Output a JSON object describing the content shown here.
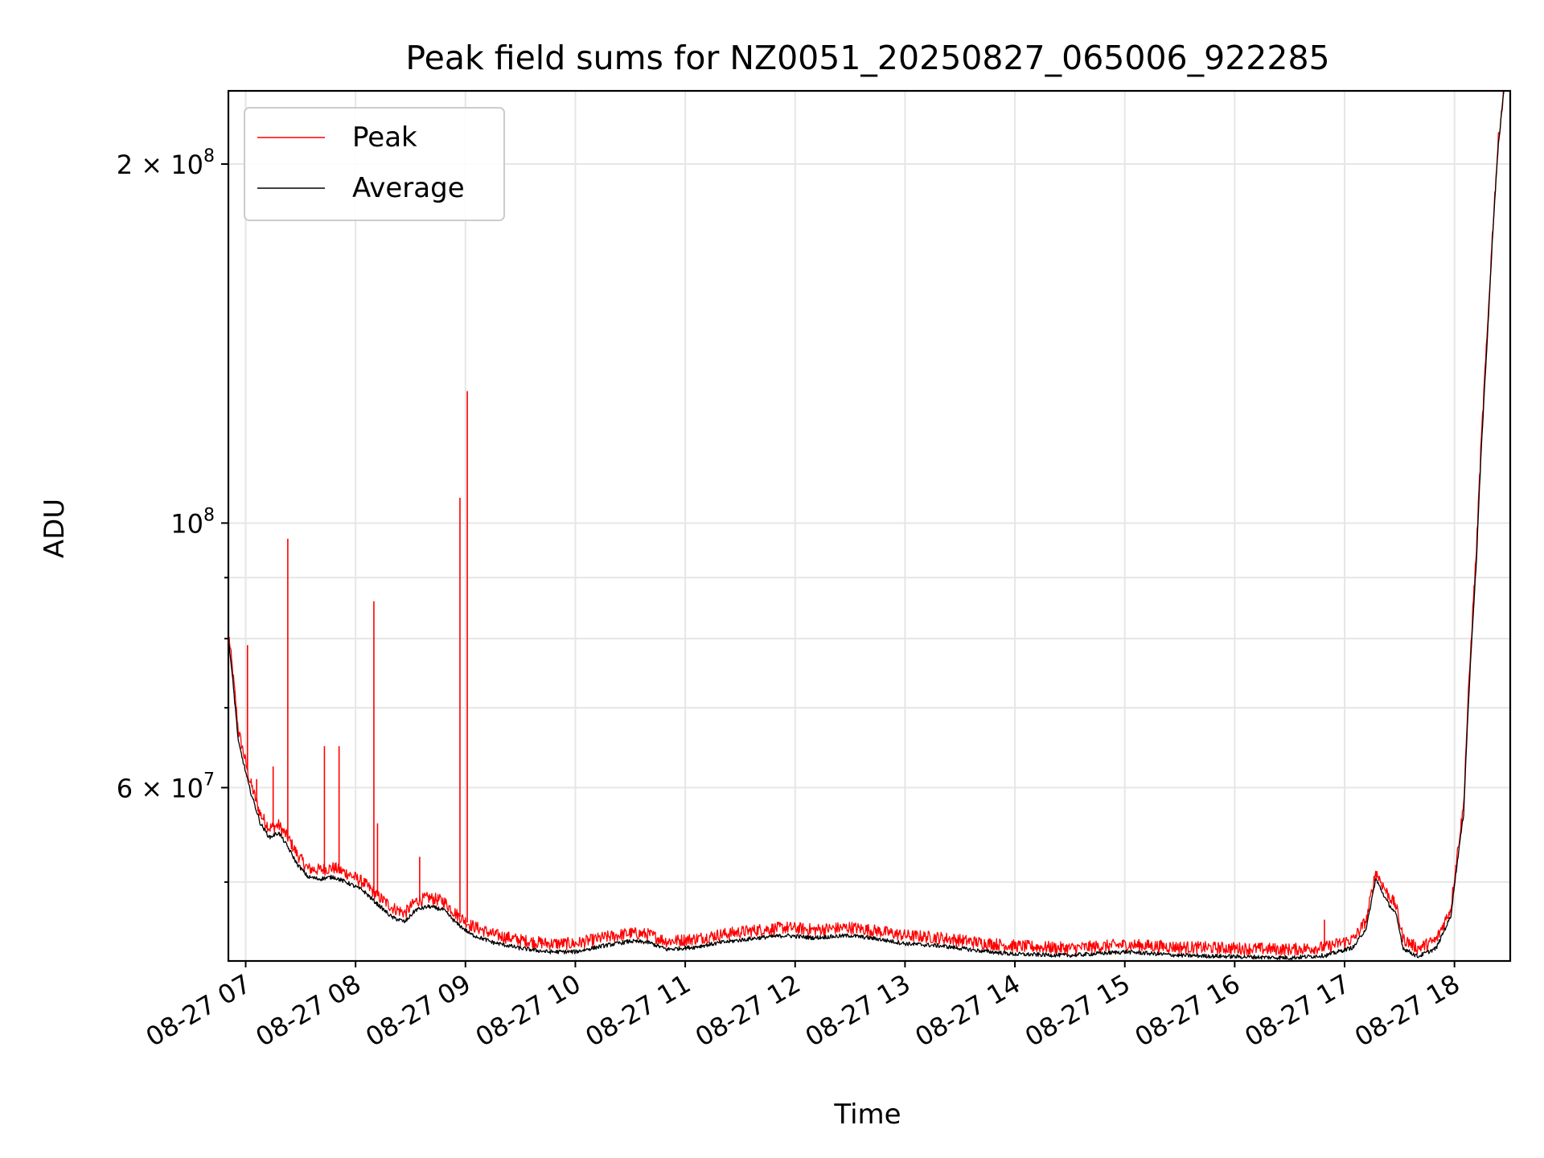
{
  "chart_data": {
    "type": "line",
    "title": "Peak field sums for NZ0051_20250827_065006_922285",
    "xlabel": "Time",
    "ylabel": "ADU",
    "y_scale": "log",
    "ylim": [
      43000000,
      230000000
    ],
    "xlim": [
      "2025-08-27 06:51",
      "2025-08-27 18:30"
    ],
    "grid": true,
    "legend_position": "top-left",
    "x_ticks": [
      {
        "time": "2025-08-27 07:00",
        "label": "08-27 07"
      },
      {
        "time": "2025-08-27 08:00",
        "label": "08-27 08"
      },
      {
        "time": "2025-08-27 09:00",
        "label": "08-27 09"
      },
      {
        "time": "2025-08-27 10:00",
        "label": "08-27 10"
      },
      {
        "time": "2025-08-27 11:00",
        "label": "08-27 11"
      },
      {
        "time": "2025-08-27 12:00",
        "label": "08-27 12"
      },
      {
        "time": "2025-08-27 13:00",
        "label": "08-27 13"
      },
      {
        "time": "2025-08-27 14:00",
        "label": "08-27 14"
      },
      {
        "time": "2025-08-27 15:00",
        "label": "08-27 15"
      },
      {
        "time": "2025-08-27 16:00",
        "label": "08-27 16"
      },
      {
        "time": "2025-08-27 17:00",
        "label": "08-27 17"
      },
      {
        "time": "2025-08-27 18:00",
        "label": "08-27 18"
      }
    ],
    "y_major_ticks": [
      {
        "value": 60000000,
        "base": "6 × 10",
        "exp": "7"
      },
      {
        "value": 100000000,
        "base": "10",
        "exp": "8"
      },
      {
        "value": 200000000,
        "base": "2 × 10",
        "exp": "8"
      }
    ],
    "y_minor_ticks": [
      50000000,
      70000000,
      80000000,
      90000000
    ],
    "series": [
      {
        "name": "Peak",
        "color": "#ff0000",
        "points": [
          [
            "2025-08-27 06:51",
            80000000
          ],
          [
            "2025-08-27 06:56",
            67000000
          ],
          [
            "2025-08-27 07:02",
            61000000
          ],
          [
            "2025-08-27 07:08",
            57000000
          ],
          [
            "2025-08-27 07:13",
            55500000
          ],
          [
            "2025-08-27 07:18",
            55800000
          ],
          [
            "2025-08-27 07:23",
            54500000
          ],
          [
            "2025-08-27 07:28",
            52800000
          ],
          [
            "2025-08-27 07:34",
            51300000
          ],
          [
            "2025-08-27 07:40",
            51200000
          ],
          [
            "2025-08-27 07:48",
            51400000
          ],
          [
            "2025-08-27 07:56",
            50800000
          ],
          [
            "2025-08-27 08:04",
            50000000
          ],
          [
            "2025-08-27 08:12",
            48700000
          ],
          [
            "2025-08-27 08:20",
            47600000
          ],
          [
            "2025-08-27 08:27",
            47100000
          ],
          [
            "2025-08-27 08:33",
            48200000
          ],
          [
            "2025-08-27 08:40",
            48500000
          ],
          [
            "2025-08-27 08:48",
            48200000
          ],
          [
            "2025-08-27 08:55",
            47000000
          ],
          [
            "2025-08-27 09:03",
            46000000
          ],
          [
            "2025-08-27 09:15",
            45200000
          ],
          [
            "2025-08-27 09:30",
            44700000
          ],
          [
            "2025-08-27 09:45",
            44400000
          ],
          [
            "2025-08-27 10:00",
            44400000
          ],
          [
            "2025-08-27 10:15",
            44900000
          ],
          [
            "2025-08-27 10:30",
            45300000
          ],
          [
            "2025-08-27 10:40",
            45200000
          ],
          [
            "2025-08-27 10:50",
            44600000
          ],
          [
            "2025-08-27 11:05",
            44800000
          ],
          [
            "2025-08-27 11:20",
            45200000
          ],
          [
            "2025-08-27 11:40",
            45600000
          ],
          [
            "2025-08-27 11:55",
            45800000
          ],
          [
            "2025-08-27 12:10",
            45600000
          ],
          [
            "2025-08-27 12:30",
            45800000
          ],
          [
            "2025-08-27 12:45",
            45500000
          ],
          [
            "2025-08-27 13:00",
            45100000
          ],
          [
            "2025-08-27 13:20",
            44900000
          ],
          [
            "2025-08-27 13:40",
            44500000
          ],
          [
            "2025-08-27 14:00",
            44200000
          ],
          [
            "2025-08-27 14:30",
            44000000
          ],
          [
            "2025-08-27 15:00",
            44300000
          ],
          [
            "2025-08-27 15:30",
            44100000
          ],
          [
            "2025-08-27 16:00",
            44000000
          ],
          [
            "2025-08-27 16:30",
            43900000
          ],
          [
            "2025-08-27 16:50",
            44100000
          ],
          [
            "2025-08-27 17:05",
            44800000
          ],
          [
            "2025-08-27 17:12",
            46500000
          ],
          [
            "2025-08-27 17:17",
            51000000
          ],
          [
            "2025-08-27 17:23",
            49000000
          ],
          [
            "2025-08-27 17:28",
            47800000
          ],
          [
            "2025-08-27 17:32",
            44800000
          ],
          [
            "2025-08-27 17:40",
            44000000
          ],
          [
            "2025-08-27 17:50",
            44700000
          ],
          [
            "2025-08-27 17:58",
            47500000
          ],
          [
            "2025-08-27 18:05",
            58000000
          ],
          [
            "2025-08-27 18:12",
            95000000
          ],
          [
            "2025-08-27 18:18",
            145000000
          ],
          [
            "2025-08-27 18:24",
            210000000
          ],
          [
            "2025-08-27 18:27",
            230000000
          ]
        ],
        "spikes": [
          [
            "2025-08-27 07:01",
            79000000
          ],
          [
            "2025-08-27 07:06",
            61000000
          ],
          [
            "2025-08-27 07:15",
            62500000
          ],
          [
            "2025-08-27 07:23",
            97000000
          ],
          [
            "2025-08-27 07:43",
            65000000
          ],
          [
            "2025-08-27 07:51",
            65000000
          ],
          [
            "2025-08-27 08:10",
            86000000
          ],
          [
            "2025-08-27 08:12",
            56000000
          ],
          [
            "2025-08-27 08:35",
            52500000
          ],
          [
            "2025-08-27 08:57",
            105000000
          ],
          [
            "2025-08-27 09:01",
            129000000
          ],
          [
            "2025-08-27 16:49",
            46500000
          ]
        ]
      },
      {
        "name": "Average",
        "color": "#000000",
        "points": [
          [
            "2025-08-27 06:51",
            79000000
          ],
          [
            "2025-08-27 06:56",
            65500000
          ],
          [
            "2025-08-27 07:02",
            60000000
          ],
          [
            "2025-08-27 07:08",
            56000000
          ],
          [
            "2025-08-27 07:13",
            54500000
          ],
          [
            "2025-08-27 07:18",
            55000000
          ],
          [
            "2025-08-27 07:23",
            53500000
          ],
          [
            "2025-08-27 07:28",
            51800000
          ],
          [
            "2025-08-27 07:34",
            50500000
          ],
          [
            "2025-08-27 07:40",
            50300000
          ],
          [
            "2025-08-27 07:48",
            50500000
          ],
          [
            "2025-08-27 07:56",
            49900000
          ],
          [
            "2025-08-27 08:04",
            49200000
          ],
          [
            "2025-08-27 08:12",
            47900000
          ],
          [
            "2025-08-27 08:20",
            46700000
          ],
          [
            "2025-08-27 08:27",
            46300000
          ],
          [
            "2025-08-27 08:33",
            47400000
          ],
          [
            "2025-08-27 08:40",
            47700000
          ],
          [
            "2025-08-27 08:48",
            47400000
          ],
          [
            "2025-08-27 08:55",
            46200000
          ],
          [
            "2025-08-27 09:03",
            45200000
          ],
          [
            "2025-08-27 09:15",
            44500000
          ],
          [
            "2025-08-27 09:30",
            44000000
          ],
          [
            "2025-08-27 09:45",
            43700000
          ],
          [
            "2025-08-27 10:00",
            43700000
          ],
          [
            "2025-08-27 10:15",
            44200000
          ],
          [
            "2025-08-27 10:30",
            44600000
          ],
          [
            "2025-08-27 10:40",
            44500000
          ],
          [
            "2025-08-27 10:50",
            43900000
          ],
          [
            "2025-08-27 11:05",
            44100000
          ],
          [
            "2025-08-27 11:20",
            44500000
          ],
          [
            "2025-08-27 11:40",
            44900000
          ],
          [
            "2025-08-27 11:55",
            45100000
          ],
          [
            "2025-08-27 12:10",
            44900000
          ],
          [
            "2025-08-27 12:30",
            45100000
          ],
          [
            "2025-08-27 12:45",
            44800000
          ],
          [
            "2025-08-27 13:00",
            44400000
          ],
          [
            "2025-08-27 13:20",
            44200000
          ],
          [
            "2025-08-27 13:40",
            43800000
          ],
          [
            "2025-08-27 14:00",
            43500000
          ],
          [
            "2025-08-27 14:30",
            43400000
          ],
          [
            "2025-08-27 15:00",
            43700000
          ],
          [
            "2025-08-27 15:30",
            43400000
          ],
          [
            "2025-08-27 16:00",
            43300000
          ],
          [
            "2025-08-27 16:30",
            43200000
          ],
          [
            "2025-08-27 16:50",
            43400000
          ],
          [
            "2025-08-27 17:05",
            44100000
          ],
          [
            "2025-08-27 17:12",
            45800000
          ],
          [
            "2025-08-27 17:17",
            50300000
          ],
          [
            "2025-08-27 17:23",
            48200000
          ],
          [
            "2025-08-27 17:28",
            47000000
          ],
          [
            "2025-08-27 17:32",
            44000000
          ],
          [
            "2025-08-27 17:40",
            43300000
          ],
          [
            "2025-08-27 17:50",
            44000000
          ],
          [
            "2025-08-27 17:58",
            46800000
          ],
          [
            "2025-08-27 18:05",
            57000000
          ],
          [
            "2025-08-27 18:12",
            93000000
          ],
          [
            "2025-08-27 18:18",
            143000000
          ],
          [
            "2025-08-27 18:24",
            208000000
          ],
          [
            "2025-08-27 18:27",
            230000000
          ]
        ]
      }
    ]
  }
}
